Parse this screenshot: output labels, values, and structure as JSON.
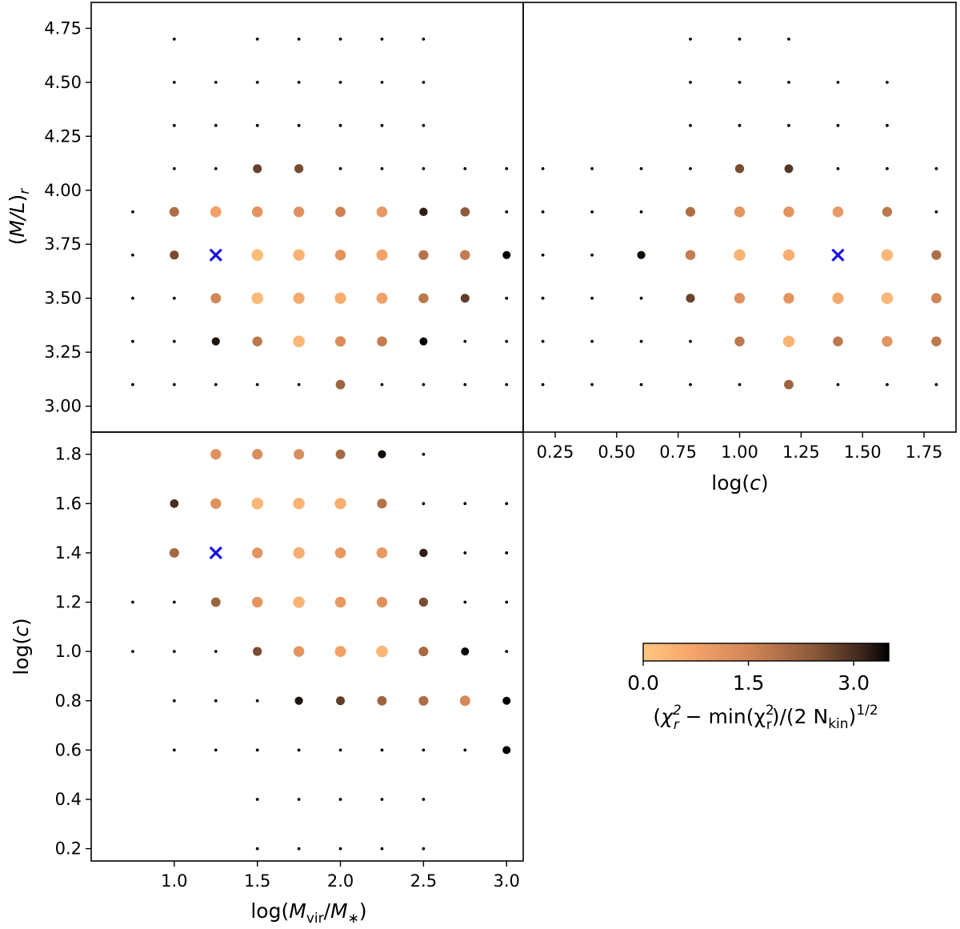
{
  "chart_data": {
    "type": "scatter",
    "colorbar": {
      "colormap": "copper_r",
      "range": [
        0,
        3.5
      ],
      "ticks": [
        "0.0",
        "1.5",
        "3.0"
      ],
      "tick_values": [
        0,
        1.5,
        3.0
      ],
      "label": "(χ²ᵣ − min(χ²ᵣ)/(2 N_kin)^1/2",
      "label_parts": {
        "open": "(",
        "chi": "χ",
        "sub_r": "r",
        "sup_2": "2",
        "minus_min": " − min(χ",
        "close_mid": ")/(2 N",
        "sub_kin": "kin",
        "close_end": ")",
        "sup_half": "1/2"
      }
    },
    "best_fit_marker": {
      "color": "#1a10e0",
      "symbol": "x"
    },
    "panels": [
      {
        "id": "ml-vs-logm",
        "xlabel": "",
        "ylabel": "(M/L)_r",
        "ylabel_parts": {
          "open": "(",
          "main": "M/L",
          "close": ")",
          "sub": "r"
        },
        "xlim": [
          0.5,
          3.1
        ],
        "ylim": [
          2.88,
          4.87
        ],
        "xticks": [],
        "yticks": [
          "3.00",
          "3.25",
          "3.50",
          "3.75",
          "4.00",
          "4.25",
          "4.50",
          "4.75"
        ],
        "ytick_values": [
          3.0,
          3.25,
          3.5,
          3.75,
          4.0,
          4.25,
          4.5,
          4.75
        ],
        "best_fit": [
          1.25,
          3.7
        ],
        "rows": [
          {
            "y": 4.7,
            "x": [
              1.0,
              1.5,
              1.75,
              2.0,
              2.25,
              2.5
            ],
            "v": [
              null,
              null,
              null,
              null,
              null,
              null
            ]
          },
          {
            "y": 4.5,
            "x": [
              1.0,
              1.25,
              1.5,
              1.75,
              2.0,
              2.25,
              2.5
            ],
            "v": [
              null,
              null,
              null,
              null,
              null,
              null,
              null
            ]
          },
          {
            "y": 4.3,
            "x": [
              1.0,
              1.25,
              1.5,
              1.75,
              2.0,
              2.25,
              2.5
            ],
            "v": [
              null,
              null,
              null,
              null,
              null,
              null,
              null
            ]
          },
          {
            "y": 4.1,
            "x": [
              1.0,
              1.25,
              1.5,
              1.75,
              2.0,
              2.25,
              2.5,
              2.75,
              3.0
            ],
            "v": [
              null,
              null,
              2.75,
              2.6,
              null,
              null,
              null,
              null,
              null
            ]
          },
          {
            "y": 3.9,
            "x": [
              0.75,
              1.0,
              1.25,
              1.5,
              1.75,
              2.0,
              2.25,
              2.5,
              2.75,
              3.0
            ],
            "v": [
              null,
              2.0,
              0.8,
              1.1,
              1.2,
              1.6,
              1.0,
              3.2,
              2.4,
              null
            ]
          },
          {
            "y": 3.7,
            "x": [
              0.75,
              1.0,
              1.5,
              1.75,
              2.0,
              2.25,
              2.5,
              2.75,
              3.0
            ],
            "v": [
              null,
              2.6,
              0.2,
              0.45,
              1.1,
              0.75,
              1.9,
              1.7,
              3.5
            ]
          },
          {
            "y": 3.5,
            "x": [
              0.75,
              1.0,
              1.25,
              1.5,
              1.75,
              2.0,
              2.25,
              2.5,
              2.75,
              3.0
            ],
            "v": [
              null,
              null,
              1.5,
              0.25,
              0.6,
              0.5,
              0.8,
              1.8,
              2.8,
              null
            ]
          },
          {
            "y": 3.3,
            "x": [
              0.75,
              1.0,
              1.25,
              1.5,
              1.75,
              2.0,
              2.25,
              2.5,
              2.75,
              3.0
            ],
            "v": [
              null,
              null,
              3.3,
              1.8,
              0.3,
              1.3,
              1.7,
              3.5,
              null,
              null
            ]
          },
          {
            "y": 3.1,
            "x": [
              0.75,
              1.0,
              1.25,
              1.5,
              1.75,
              2.0,
              2.25,
              2.5,
              2.75,
              3.0
            ],
            "v": [
              null,
              null,
              null,
              null,
              null,
              2.2,
              null,
              null,
              null,
              null
            ]
          }
        ]
      },
      {
        "id": "ml-vs-logc",
        "xlabel": "log(c)",
        "xlabel_parts": {
          "open": "log(",
          "var": "c",
          "close": ")"
        },
        "ylabel": "",
        "xlim": [
          0.12,
          1.88
        ],
        "ylim": [
          2.88,
          4.87
        ],
        "xticks": [
          "0.25",
          "0.50",
          "0.75",
          "1.00",
          "1.25",
          "1.50",
          "1.75"
        ],
        "xtick_values": [
          0.25,
          0.5,
          0.75,
          1.0,
          1.25,
          1.5,
          1.75
        ],
        "yticks": [],
        "best_fit": [
          1.4,
          3.7
        ],
        "rows": [
          {
            "y": 4.7,
            "x": [
              0.8,
              1.0,
              1.2
            ],
            "v": [
              null,
              null,
              null
            ]
          },
          {
            "y": 4.5,
            "x": [
              0.8,
              1.0,
              1.2,
              1.4,
              1.6
            ],
            "v": [
              null,
              null,
              null,
              null,
              null
            ]
          },
          {
            "y": 4.3,
            "x": [
              0.8,
              1.0,
              1.2,
              1.4,
              1.6
            ],
            "v": [
              null,
              null,
              null,
              null,
              null
            ]
          },
          {
            "y": 4.1,
            "x": [
              0.2,
              0.4,
              0.6,
              0.8,
              1.0,
              1.2,
              1.4,
              1.6,
              1.8
            ],
            "v": [
              null,
              null,
              null,
              null,
              2.6,
              2.9,
              null,
              null,
              null
            ]
          },
          {
            "y": 3.9,
            "x": [
              0.2,
              0.4,
              0.6,
              0.8,
              1.0,
              1.2,
              1.4,
              1.6,
              1.8
            ],
            "v": [
              null,
              null,
              null,
              2.0,
              1.1,
              1.1,
              1.0,
              1.8,
              null
            ]
          },
          {
            "y": 3.7,
            "x": [
              0.2,
              0.4,
              0.6,
              0.8,
              1.0,
              1.2,
              1.6,
              1.8
            ],
            "v": [
              null,
              null,
              3.4,
              1.7,
              0.4,
              0.5,
              0.3,
              2.0
            ]
          },
          {
            "y": 3.5,
            "x": [
              0.2,
              0.4,
              0.6,
              0.8,
              1.0,
              1.2,
              1.4,
              1.6,
              1.8
            ],
            "v": [
              null,
              null,
              null,
              2.7,
              1.2,
              1.1,
              0.6,
              0.3,
              1.5
            ]
          },
          {
            "y": 3.3,
            "x": [
              0.2,
              0.4,
              0.6,
              0.8,
              1.0,
              1.2,
              1.4,
              1.6,
              1.8
            ],
            "v": [
              null,
              null,
              null,
              null,
              1.8,
              0.4,
              1.8,
              1.1,
              1.8
            ]
          },
          {
            "y": 3.1,
            "x": [
              0.2,
              0.4,
              0.6,
              0.8,
              1.0,
              1.2,
              1.4,
              1.6,
              1.8
            ],
            "v": [
              null,
              null,
              null,
              null,
              null,
              2.2,
              null,
              null,
              null
            ]
          }
        ]
      },
      {
        "id": "logc-vs-logm",
        "xlabel": "log(M_vir/M_*)",
        "xlabel_parts": {
          "open": "log(",
          "m1": "M",
          "sub1": "vir",
          "slash": "/",
          "m2": "M",
          "sub2": "∗",
          "close": ")"
        },
        "ylabel": "log(c)",
        "ylabel_parts": {
          "open": "log(",
          "var": "c",
          "close": ")"
        },
        "xlim": [
          0.5,
          3.1
        ],
        "ylim": [
          0.15,
          1.89
        ],
        "xticks": [
          "1.0",
          "1.5",
          "2.0",
          "2.5",
          "3.0"
        ],
        "xtick_values": [
          1.0,
          1.5,
          2.0,
          2.5,
          3.0
        ],
        "yticks": [
          "0.2",
          "0.4",
          "0.6",
          "0.8",
          "1.0",
          "1.2",
          "1.4",
          "1.6",
          "1.8"
        ],
        "ytick_values": [
          0.2,
          0.4,
          0.6,
          0.8,
          1.0,
          1.2,
          1.4,
          1.6,
          1.8
        ],
        "best_fit": [
          1.25,
          1.4
        ],
        "rows": [
          {
            "y": 1.8,
            "x": [
              1.25,
              1.5,
              1.75,
              2.0,
              2.25,
              2.5
            ],
            "v": [
              1.2,
              1.3,
              1.3,
              2.1,
              3.4,
              null
            ]
          },
          {
            "y": 1.6,
            "x": [
              1.0,
              1.25,
              1.5,
              1.75,
              2.0,
              2.25,
              2.5,
              2.75,
              3.0
            ],
            "v": [
              3.0,
              1.2,
              0.3,
              0.4,
              0.5,
              1.9,
              null,
              null,
              null
            ]
          },
          {
            "y": 1.4,
            "x": [
              1.0,
              1.5,
              1.75,
              2.0,
              2.25,
              2.5,
              2.75,
              3.0
            ],
            "v": [
              2.1,
              1.1,
              0.5,
              1.0,
              1.0,
              3.2,
              null,
              null
            ]
          },
          {
            "y": 1.2,
            "x": [
              0.75,
              1.0,
              1.25,
              1.5,
              1.75,
              2.0,
              2.25,
              2.5,
              2.75,
              3.0
            ],
            "v": [
              null,
              null,
              2.2,
              1.1,
              0.4,
              1.0,
              1.2,
              2.6,
              null,
              null
            ]
          },
          {
            "y": 1.0,
            "x": [
              0.75,
              1.0,
              1.25,
              1.5,
              1.75,
              2.0,
              2.25,
              2.5,
              2.75,
              3.0
            ],
            "v": [
              null,
              null,
              null,
              2.6,
              1.1,
              0.8,
              0.3,
              2.1,
              3.5,
              null
            ]
          },
          {
            "y": 0.8,
            "x": [
              1.0,
              1.25,
              1.5,
              1.75,
              2.0,
              2.25,
              2.5,
              2.75,
              3.0
            ],
            "v": [
              null,
              null,
              null,
              3.3,
              2.8,
              2.2,
              2.0,
              1.4,
              3.5
            ]
          },
          {
            "y": 0.6,
            "x": [
              1.0,
              1.25,
              1.5,
              1.75,
              2.0,
              2.25,
              2.5,
              2.75,
              3.0
            ],
            "v": [
              null,
              null,
              null,
              null,
              null,
              null,
              null,
              null,
              3.5
            ]
          },
          {
            "y": 0.4,
            "x": [
              1.5,
              1.75,
              2.0,
              2.25,
              2.5
            ],
            "v": [
              null,
              null,
              null,
              null,
              null
            ]
          },
          {
            "y": 0.2,
            "x": [
              1.5,
              1.75,
              2.0,
              2.25,
              2.5
            ],
            "v": [
              null,
              null,
              null,
              null,
              null
            ]
          }
        ]
      }
    ]
  }
}
